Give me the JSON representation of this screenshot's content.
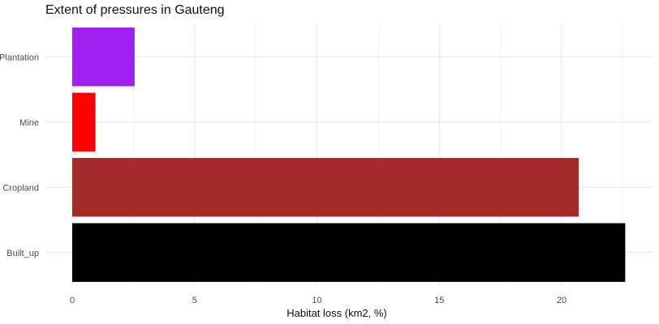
{
  "chart_data": {
    "type": "bar",
    "orientation": "horizontal",
    "title": "Extent of pressures in Gauteng",
    "xlabel": "Habitat loss (km2, %)",
    "ylabel": "",
    "categories": [
      "Built_up",
      "Cropland",
      "Mine",
      "Plantation"
    ],
    "values": [
      22.6,
      20.7,
      0.95,
      2.55
    ],
    "colors": [
      "#000000",
      "#a52a2a",
      "#ff0000",
      "#a020f0"
    ],
    "xlim": [
      0,
      23.7
    ],
    "xticks": [
      0,
      5,
      10,
      15,
      20
    ],
    "xtick_labels": [
      "0",
      "5",
      "10",
      "15",
      "20"
    ],
    "grid": true,
    "theme": "minimal"
  }
}
